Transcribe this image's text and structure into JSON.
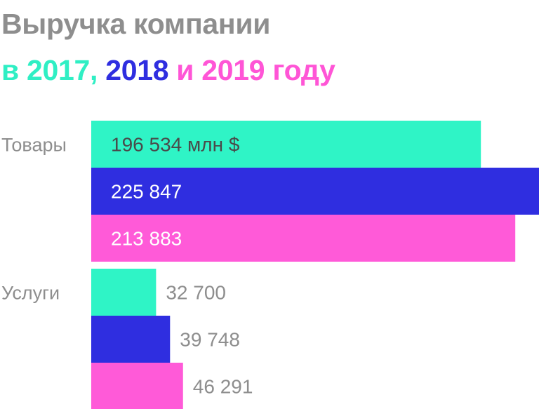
{
  "title": {
    "line1": "Выручка компании",
    "line2_parts": [
      {
        "text": "в 2017,",
        "color": "#2fefc4"
      },
      {
        "text": " 2018",
        "color": "#2f2ee0"
      },
      {
        "text": " и 2019 году",
        "color": "#ff55d6"
      }
    ]
  },
  "chart_data": {
    "type": "bar",
    "orientation": "horizontal",
    "categories": [
      "Товары",
      "Услуги"
    ],
    "unit": "млн $",
    "series": [
      {
        "name": "2017",
        "color": "#2ff4c6",
        "values": [
          196534,
          32700
        ],
        "labels": [
          "196 534 млн $",
          "32 700"
        ]
      },
      {
        "name": "2018",
        "color": "#2f2ee0",
        "values": [
          225847,
          39748
        ],
        "labels": [
          "225 847",
          "39 748"
        ]
      },
      {
        "name": "2019",
        "color": "#ff5ad8",
        "values": [
          213883,
          46291
        ],
        "labels": [
          "213 883",
          "46 291"
        ]
      }
    ],
    "xlim": [
      0,
      225847
    ],
    "grid": false,
    "legend": "none"
  },
  "colors": {
    "label_inside": "#4a4a4a",
    "label_inside_light": "#ffffff",
    "label_outside": "#8e8e8e"
  }
}
